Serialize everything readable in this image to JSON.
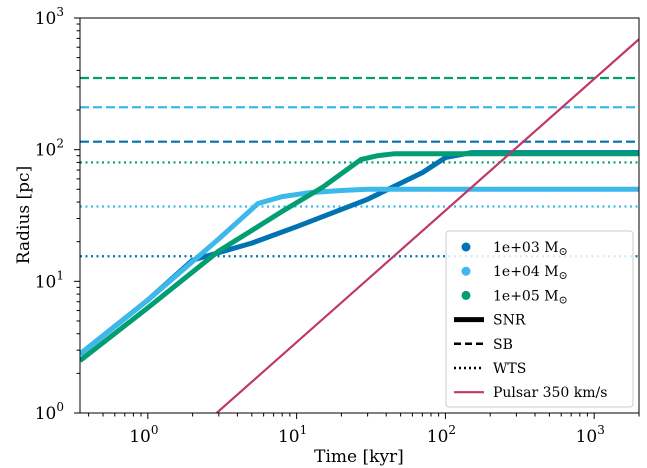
{
  "chart_data": {
    "type": "line",
    "title": "",
    "xlabel": "Time [kyr]",
    "ylabel": "Radius [pc]",
    "xscale": "log",
    "yscale": "log",
    "xlim": [
      0.35,
      2000
    ],
    "ylim": [
      1,
      1000
    ],
    "grid": false,
    "legend_position": "lower-right",
    "x_ticks": [
      {
        "value": 1,
        "base": "10",
        "exp": "0"
      },
      {
        "value": 10,
        "base": "10",
        "exp": "1"
      },
      {
        "value": 100,
        "base": "10",
        "exp": "2"
      },
      {
        "value": 1000,
        "base": "10",
        "exp": "3"
      }
    ],
    "y_ticks": [
      {
        "value": 1,
        "base": "10",
        "exp": "0"
      },
      {
        "value": 10,
        "base": "10",
        "exp": "1"
      },
      {
        "value": 100,
        "base": "10",
        "exp": "2"
      },
      {
        "value": 1000,
        "base": "10",
        "exp": "3"
      }
    ],
    "series": [
      {
        "name": "1e+03 M",
        "color": "#0173b2",
        "snr": {
          "x": [
            0.35,
            1.0,
            2.0,
            5.0,
            10,
            30,
            70,
            100,
            150,
            2000
          ],
          "y": [
            2.8,
            7.2,
            14.5,
            19.5,
            26,
            42,
            67,
            87,
            95,
            95
          ]
        },
        "sb": 115,
        "wts": 15.5
      },
      {
        "name": "1e+04 M",
        "color": "#3db8ea",
        "snr": {
          "x": [
            0.35,
            1.0,
            3.0,
            5.5,
            8,
            12,
            20,
            30,
            50,
            2000
          ],
          "y": [
            2.8,
            7.2,
            21,
            39,
            44,
            47,
            49,
            50,
            50,
            50
          ]
        },
        "sb": 210,
        "wts": 37
      },
      {
        "name": "1e+05 M",
        "color": "#029e73",
        "snr": {
          "x": [
            0.35,
            1.0,
            3.0,
            8,
            15,
            27,
            35,
            45,
            100,
            2000
          ],
          "y": [
            2.5,
            6.3,
            17,
            34,
            52,
            84,
            90,
            93,
            93,
            93
          ]
        },
        "sb": 350,
        "wts": 80
      }
    ],
    "pulsar": {
      "name": "Pulsar 350 km/s",
      "color": "#c03868",
      "x": [
        2.9,
        2000
      ],
      "y": [
        1.0,
        690
      ]
    },
    "legend": {
      "solar_symbol": "⊙",
      "styles": [
        {
          "label": "SNR",
          "style": "solid"
        },
        {
          "label": "SB",
          "style": "dashed"
        },
        {
          "label": "WTS",
          "style": "dotted"
        }
      ]
    }
  }
}
